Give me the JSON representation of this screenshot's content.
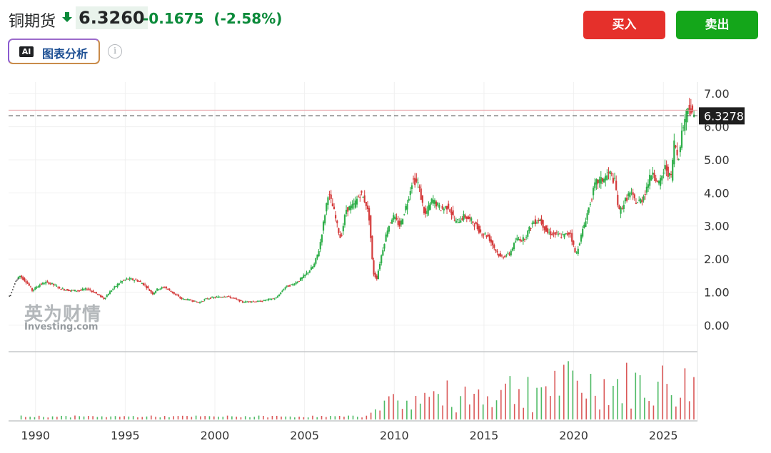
{
  "header": {
    "title": "铜期货",
    "price": "6.3260",
    "change": "-0.1675",
    "change_pct": "(-2.58%)",
    "ai_badge": "AI",
    "ai_label": "图表分析",
    "info_glyph": "i",
    "buy_label": "买入",
    "sell_label": "卖出"
  },
  "colors": {
    "up": "#2eae49",
    "down": "#d43b3b",
    "buy": "#e5302b",
    "sell": "#14a61a",
    "change": "#0b8a3a"
  },
  "watermark": {
    "cn": "英为财情",
    "en": "Investing.com"
  },
  "price_label": "6.3278",
  "chart_data": {
    "type": "candlestick",
    "x_range": [
      1988.5,
      2026.9
    ],
    "x_ticks": [
      "1990",
      "1995",
      "2000",
      "2005",
      "2010",
      "2015",
      "2020",
      "2025"
    ],
    "y_ticks": [
      "7.00",
      "6.00",
      "5.00",
      "4.00",
      "3.00",
      "2.00",
      "1.00",
      "0.00"
    ],
    "ylim": [
      -0.78,
      7.35
    ],
    "last_price_line": 6.3278,
    "high_line": 6.5,
    "price_series": [
      [
        1988.6,
        0.88
      ],
      [
        1988.9,
        1.32
      ],
      [
        1989.2,
        1.5
      ],
      [
        1989.6,
        1.3
      ],
      [
        1989.9,
        1.05
      ],
      [
        1990.3,
        1.22
      ],
      [
        1990.7,
        1.3
      ],
      [
        1991.0,
        1.25
      ],
      [
        1991.5,
        1.1
      ],
      [
        1992.0,
        1.05
      ],
      [
        1992.5,
        1.05
      ],
      [
        1993.0,
        1.1
      ],
      [
        1993.5,
        0.95
      ],
      [
        1993.9,
        0.8
      ],
      [
        1994.3,
        1.05
      ],
      [
        1994.8,
        1.3
      ],
      [
        1995.2,
        1.4
      ],
      [
        1995.8,
        1.35
      ],
      [
        1996.2,
        1.2
      ],
      [
        1996.6,
        0.95
      ],
      [
        1996.9,
        1.1
      ],
      [
        1997.3,
        1.15
      ],
      [
        1997.7,
        1.0
      ],
      [
        1998.2,
        0.8
      ],
      [
        1998.8,
        0.75
      ],
      [
        1999.2,
        0.68
      ],
      [
        1999.6,
        0.8
      ],
      [
        2000.2,
        0.85
      ],
      [
        2000.7,
        0.88
      ],
      [
        2001.2,
        0.8
      ],
      [
        2001.6,
        0.7
      ],
      [
        2002.1,
        0.72
      ],
      [
        2002.6,
        0.72
      ],
      [
        2003.1,
        0.78
      ],
      [
        2003.5,
        0.82
      ],
      [
        2004.0,
        1.15
      ],
      [
        2004.5,
        1.25
      ],
      [
        2005.0,
        1.45
      ],
      [
        2005.6,
        1.8
      ],
      [
        2005.9,
        2.3
      ],
      [
        2006.2,
        3.3
      ],
      [
        2006.4,
        4.0
      ],
      [
        2006.7,
        3.5
      ],
      [
        2006.9,
        3.0
      ],
      [
        2007.1,
        2.6
      ],
      [
        2007.4,
        3.5
      ],
      [
        2007.8,
        3.6
      ],
      [
        2008.2,
        4.0
      ],
      [
        2008.5,
        3.7
      ],
      [
        2008.7,
        3.2
      ],
      [
        2008.9,
        1.6
      ],
      [
        2009.1,
        1.4
      ],
      [
        2009.4,
        2.2
      ],
      [
        2009.7,
        2.9
      ],
      [
        2010.0,
        3.3
      ],
      [
        2010.4,
        3.0
      ],
      [
        2010.8,
        3.7
      ],
      [
        2011.1,
        4.4
      ],
      [
        2011.4,
        4.3
      ],
      [
        2011.8,
        3.3
      ],
      [
        2012.2,
        3.8
      ],
      [
        2012.7,
        3.5
      ],
      [
        2013.1,
        3.6
      ],
      [
        2013.5,
        3.1
      ],
      [
        2014.0,
        3.3
      ],
      [
        2014.5,
        3.1
      ],
      [
        2014.9,
        2.8
      ],
      [
        2015.3,
        2.7
      ],
      [
        2015.7,
        2.3
      ],
      [
        2016.0,
        2.05
      ],
      [
        2016.5,
        2.15
      ],
      [
        2016.9,
        2.6
      ],
      [
        2017.3,
        2.6
      ],
      [
        2017.8,
        3.1
      ],
      [
        2018.2,
        3.2
      ],
      [
        2018.6,
        2.8
      ],
      [
        2019.0,
        2.75
      ],
      [
        2019.5,
        2.7
      ],
      [
        2019.9,
        2.8
      ],
      [
        2020.2,
        2.1
      ],
      [
        2020.5,
        2.7
      ],
      [
        2020.9,
        3.5
      ],
      [
        2021.3,
        4.3
      ],
      [
        2021.7,
        4.4
      ],
      [
        2022.1,
        4.6
      ],
      [
        2022.4,
        4.3
      ],
      [
        2022.6,
        3.4
      ],
      [
        2022.9,
        3.7
      ],
      [
        2023.2,
        4.0
      ],
      [
        2023.6,
        3.7
      ],
      [
        2023.9,
        3.8
      ],
      [
        2024.3,
        4.4
      ],
      [
        2024.5,
        4.7
      ],
      [
        2024.8,
        4.2
      ],
      [
        2025.2,
        4.8
      ],
      [
        2025.5,
        4.4
      ],
      [
        2025.7,
        5.6
      ],
      [
        2025.9,
        5.0
      ],
      [
        2026.1,
        5.8
      ],
      [
        2026.3,
        6.3
      ],
      [
        2026.5,
        6.7
      ],
      [
        2026.7,
        6.33
      ]
    ],
    "volume_start_year": 2008.5,
    "volume_max_level": 0.7
  }
}
